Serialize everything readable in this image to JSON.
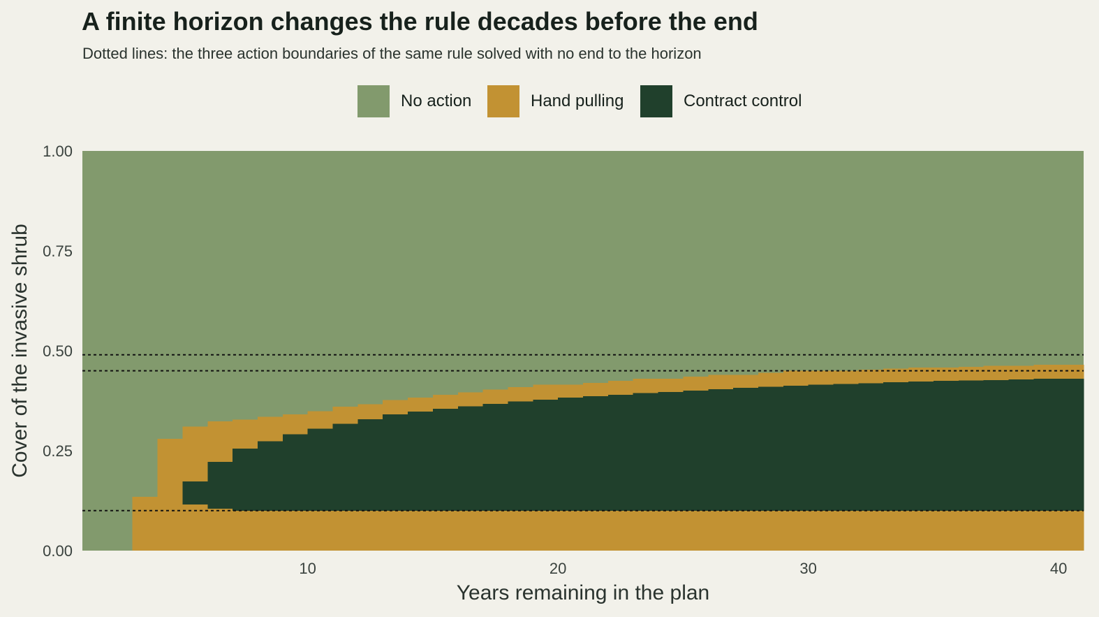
{
  "title": "A finite horizon changes the rule decades before the end",
  "subtitle": "Dotted lines: the three action boundaries of the same rule solved with no end to the horizon",
  "colors": {
    "background": "#f2f1ea",
    "no_action": "#829a6d",
    "hand_pulling": "#c29233",
    "contract_control": "#20402c"
  },
  "legend": [
    {
      "label": "No action",
      "color": "#829a6d"
    },
    {
      "label": "Hand pulling",
      "color": "#c29233"
    },
    {
      "label": "Contract control",
      "color": "#20402c"
    }
  ],
  "chart_data": {
    "type": "area",
    "title": "A finite horizon changes the rule decades before the end",
    "subtitle": "Dotted lines: the three action boundaries of the same rule solved with no end to the horizon",
    "xlabel": "Years remaining in the plan",
    "ylabel": "Cover of the invasive shrub",
    "xlim": [
      1,
      41
    ],
    "ylim": [
      0,
      1
    ],
    "x_ticks": [
      10,
      20,
      30,
      40
    ],
    "y_ticks": [
      0,
      0.25,
      0.5,
      0.75,
      1
    ],
    "y_tick_labels": [
      "0.00",
      "0.25",
      "0.50",
      "0.75",
      "1.00"
    ],
    "grid": false,
    "legend_position": "top",
    "step_x": [
      1,
      2,
      3,
      4,
      5,
      6,
      7,
      8,
      9,
      10,
      11,
      12,
      13,
      14,
      15,
      16,
      17,
      18,
      19,
      20,
      21,
      22,
      23,
      24,
      25,
      26,
      27,
      28,
      29,
      30,
      31,
      32,
      33,
      34,
      35,
      36,
      37,
      38,
      39,
      40
    ],
    "regions": [
      {
        "name": "Hand pulling",
        "lower": [
          1,
          1,
          0,
          0,
          0,
          0,
          0,
          0,
          0,
          0,
          0,
          0,
          0,
          0,
          0,
          0,
          0,
          0,
          0,
          0,
          0,
          0,
          0,
          0,
          0,
          0,
          0,
          0,
          0,
          0,
          0,
          0,
          0,
          0,
          0,
          0,
          0,
          0,
          0,
          0
        ],
        "upper": [
          1,
          1,
          0.135,
          0.28,
          0.31,
          0.323,
          0.328,
          0.335,
          0.341,
          0.349,
          0.36,
          0.366,
          0.377,
          0.383,
          0.39,
          0.396,
          0.403,
          0.409,
          0.415,
          0.415,
          0.42,
          0.425,
          0.43,
          0.43,
          0.435,
          0.44,
          0.44,
          0.445,
          0.45,
          0.45,
          0.45,
          0.453,
          0.455,
          0.458,
          0.458,
          0.46,
          0.462,
          0.462,
          0.465,
          0.465
        ]
      },
      {
        "name": "Contract control",
        "lower": [
          1,
          1,
          1,
          1,
          0.115,
          0.105,
          0.1,
          0.1,
          0.1,
          0.1,
          0.1,
          0.1,
          0.1,
          0.1,
          0.1,
          0.1,
          0.1,
          0.1,
          0.1,
          0.1,
          0.1,
          0.1,
          0.1,
          0.1,
          0.1,
          0.1,
          0.1,
          0.1,
          0.1,
          0.1,
          0.1,
          0.1,
          0.1,
          0.1,
          0.1,
          0.1,
          0.1,
          0.1,
          0.1,
          0.1
        ],
        "upper": [
          1,
          1,
          1,
          1,
          0.173,
          0.222,
          0.255,
          0.274,
          0.291,
          0.305,
          0.317,
          0.329,
          0.341,
          0.348,
          0.355,
          0.361,
          0.367,
          0.373,
          0.378,
          0.383,
          0.386,
          0.39,
          0.394,
          0.397,
          0.4,
          0.404,
          0.407,
          0.41,
          0.413,
          0.415,
          0.417,
          0.419,
          0.421,
          0.423,
          0.425,
          0.426,
          0.427,
          0.428,
          0.43,
          0.43
        ]
      }
    ],
    "reference_lines": [
      {
        "y": 0.1,
        "style": "dotted"
      },
      {
        "y": 0.45,
        "style": "dotted"
      },
      {
        "y": 0.49,
        "style": "dotted"
      }
    ]
  }
}
